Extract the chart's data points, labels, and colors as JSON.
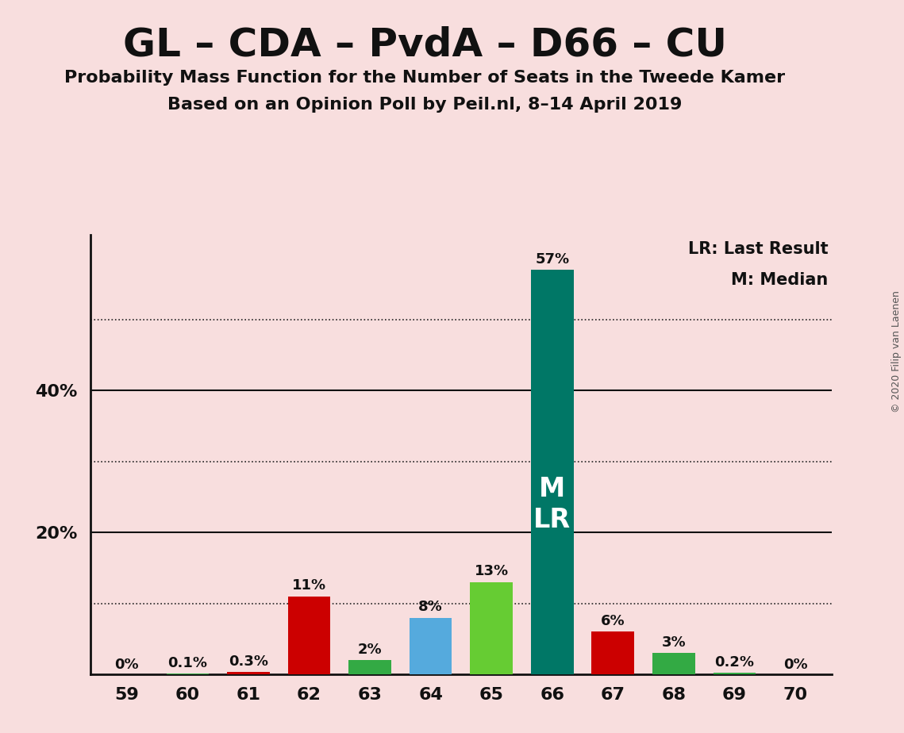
{
  "title": "GL – CDA – PvdA – D66 – CU",
  "subtitle1": "Probability Mass Function for the Number of Seats in the Tweede Kamer",
  "subtitle2": "Based on an Opinion Poll by Peil.nl, 8–14 April 2019",
  "copyright": "© 2020 Filip van Laenen",
  "seats": [
    59,
    60,
    61,
    62,
    63,
    64,
    65,
    66,
    67,
    68,
    69,
    70
  ],
  "values": [
    0.0,
    0.1,
    0.3,
    11.0,
    2.0,
    8.0,
    13.0,
    57.0,
    6.0,
    3.0,
    0.2,
    0.0
  ],
  "labels": [
    "0%",
    "0.1%",
    "0.3%",
    "11%",
    "2%",
    "8%",
    "13%",
    "57%",
    "6%",
    "3%",
    "0.2%",
    "0%"
  ],
  "bar_colors": [
    "#cc0000",
    "#33aa44",
    "#cc0000",
    "#cc0000",
    "#33aa44",
    "#55aadd",
    "#66cc33",
    "#007766",
    "#cc0000",
    "#33aa44",
    "#33aa44",
    "#cc0000"
  ],
  "median_lr_seat": 66,
  "median_label": "M",
  "lr_label": "LR",
  "legend_lr": "LR: Last Result",
  "legend_m": "M: Median",
  "background_color": "#f8dede",
  "bar_text_color": "#111111",
  "bar_inner_text_color": "#ffffff",
  "ylim": [
    0,
    62
  ],
  "shown_yticks": [
    20,
    40
  ],
  "dotted_yticks": [
    10,
    30,
    50
  ],
  "solid_yticks": [
    20,
    40
  ]
}
